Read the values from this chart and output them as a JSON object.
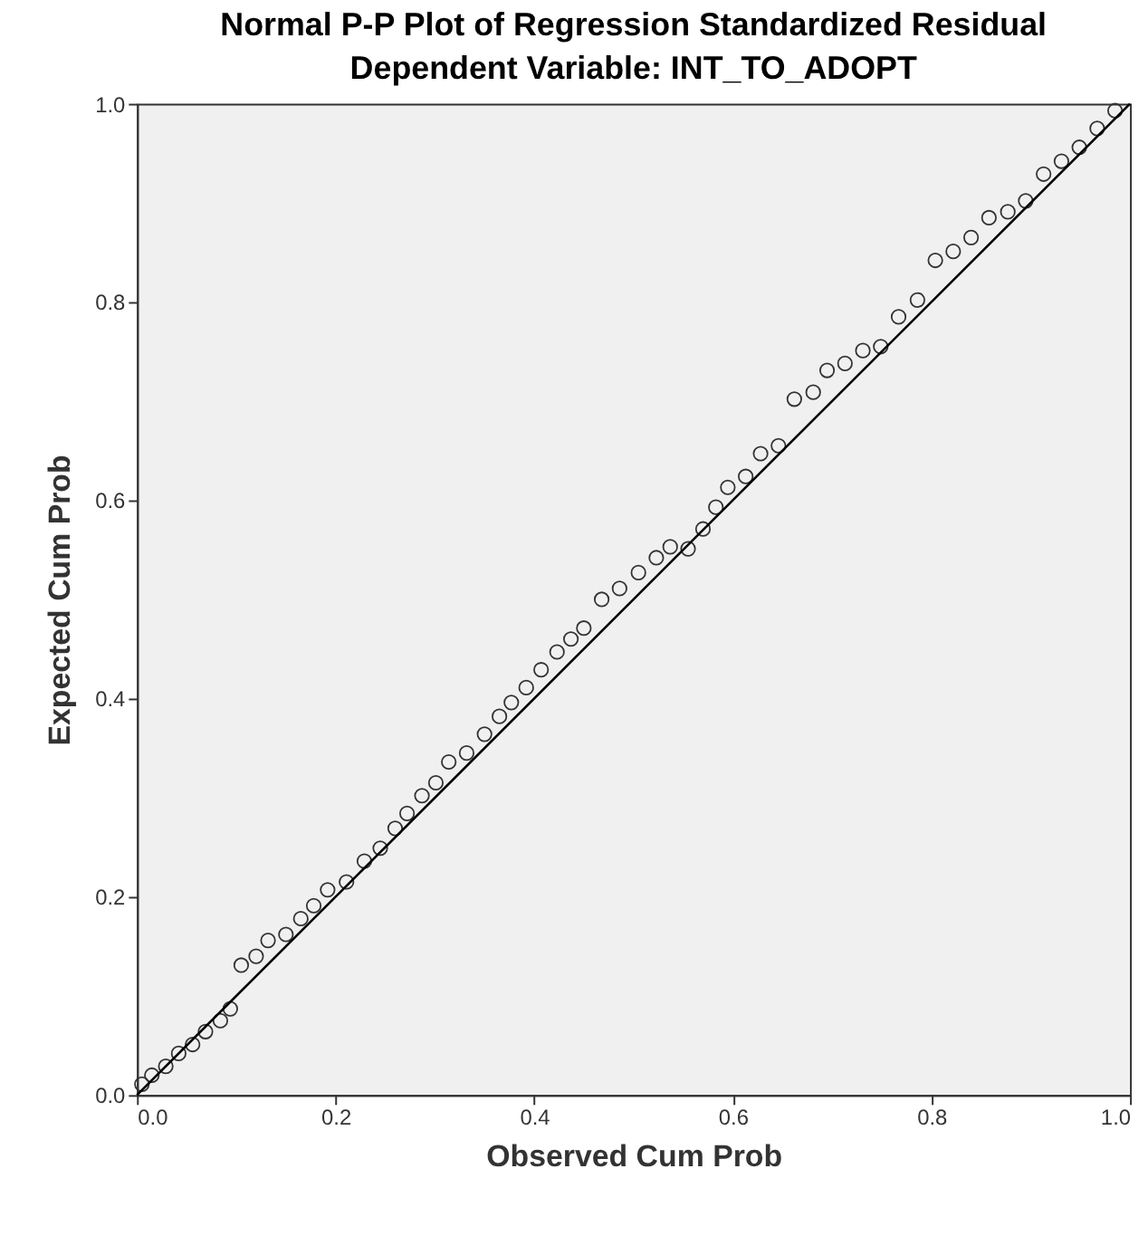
{
  "chart_data": {
    "type": "scatter",
    "title": "Normal P-P Plot of Regression Standardized Residual",
    "subtitle": "Dependent Variable: INT_TO_ADOPT",
    "xlabel": "Observed Cum Prob",
    "ylabel": "Expected Cum Prob",
    "xlim": [
      0,
      1
    ],
    "ylim": [
      0,
      1
    ],
    "xticks": [
      {
        "value": 0,
        "label": "0.0"
      },
      {
        "value": 0.2,
        "label": "0.2"
      },
      {
        "value": 0.4,
        "label": "0.4"
      },
      {
        "value": 0.6,
        "label": "0.6"
      },
      {
        "value": 0.8,
        "label": "0.8"
      },
      {
        "value": 1,
        "label": "1.0"
      }
    ],
    "yticks": [
      {
        "value": 0,
        "label": "0.0"
      },
      {
        "value": 0.2,
        "label": "0.2"
      },
      {
        "value": 0.4,
        "label": "0.4"
      },
      {
        "value": 0.6,
        "label": "0.6"
      },
      {
        "value": 0.8,
        "label": "0.8"
      },
      {
        "value": 1,
        "label": "1.0"
      }
    ],
    "grid": false,
    "marker": "circle",
    "series": [
      {
        "color": "#333333",
        "x": [
          0.005,
          0.015,
          0.029,
          0.042,
          0.056,
          0.069,
          0.084,
          0.094,
          0.105,
          0.12,
          0.132,
          0.15,
          0.165,
          0.178,
          0.192,
          0.211,
          0.229,
          0.245,
          0.26,
          0.272,
          0.287,
          0.301,
          0.314,
          0.332,
          0.35,
          0.365,
          0.377,
          0.392,
          0.407,
          0.423,
          0.437,
          0.45,
          0.468,
          0.486,
          0.505,
          0.523,
          0.537,
          0.555,
          0.57,
          0.583,
          0.595,
          0.613,
          0.628,
          0.646,
          0.662,
          0.681,
          0.695,
          0.713,
          0.731,
          0.749,
          0.767,
          0.786,
          0.804,
          0.822,
          0.84,
          0.858,
          0.877,
          0.895,
          0.913,
          0.931,
          0.949,
          0.967,
          0.985
        ],
        "values": [
          0.011,
          0.02,
          0.029,
          0.042,
          0.051,
          0.064,
          0.075,
          0.087,
          0.131,
          0.14,
          0.156,
          0.162,
          0.178,
          0.191,
          0.207,
          0.215,
          0.236,
          0.249,
          0.269,
          0.284,
          0.302,
          0.315,
          0.336,
          0.345,
          0.364,
          0.382,
          0.396,
          0.411,
          0.429,
          0.447,
          0.46,
          0.471,
          0.5,
          0.511,
          0.527,
          0.542,
          0.553,
          0.551,
          0.571,
          0.593,
          0.613,
          0.624,
          0.647,
          0.655,
          0.702,
          0.709,
          0.731,
          0.738,
          0.751,
          0.755,
          0.785,
          0.802,
          0.842,
          0.851,
          0.865,
          0.885,
          0.891,
          0.902,
          0.929,
          0.942,
          0.956,
          0.975,
          0.993
        ]
      },
      {
        "type": "line",
        "marker": "none",
        "color": "#000000",
        "x": [
          0,
          1
        ],
        "values": [
          0,
          1
        ]
      }
    ]
  }
}
